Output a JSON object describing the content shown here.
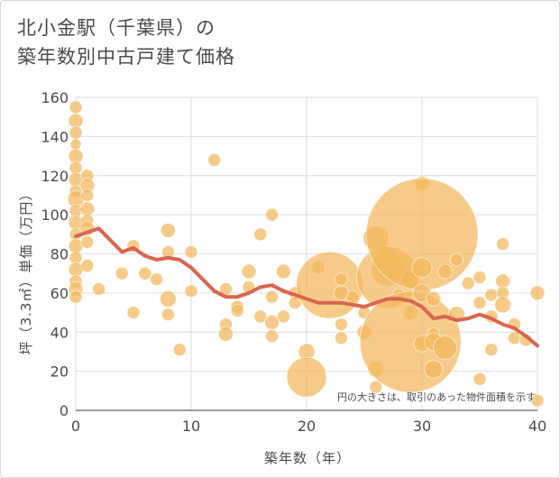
{
  "title_line1": "北小金駅（千葉県）の",
  "title_line2": "築年数別中古戸建て価格",
  "chart_data": {
    "type": "scatter",
    "title": "北小金駅（千葉県）の築年数別中古戸建て価格",
    "xlabel": "築年数（年）",
    "ylabel": "坪（3.3㎡）単価（万円）",
    "xlim": [
      0,
      40
    ],
    "ylim": [
      0,
      160
    ],
    "xticks": [
      0,
      10,
      20,
      30,
      40
    ],
    "yticks": [
      0,
      20,
      40,
      60,
      80,
      100,
      120,
      140,
      160
    ],
    "annotation": "円の大きさは、取引のあった物件面積を示す",
    "colors": {
      "bubble": "#f2b75b",
      "trend": "#d9654e",
      "grid": "#d9dde3"
    },
    "trend_line": {
      "x": [
        0,
        1,
        2,
        3,
        4,
        5,
        6,
        7,
        8,
        9,
        10,
        11,
        12,
        13,
        14,
        15,
        16,
        17,
        18,
        19,
        20,
        21,
        22,
        23,
        24,
        25,
        26,
        27,
        28,
        29,
        30,
        31,
        32,
        33,
        34,
        35,
        36,
        37,
        38,
        39,
        40
      ],
      "y": [
        89,
        91,
        93,
        87,
        81,
        83,
        79,
        77,
        78,
        77,
        73,
        67,
        61,
        58,
        58,
        60,
        63,
        64,
        61,
        59,
        57,
        55,
        55,
        55,
        54,
        53,
        55,
        57,
        57,
        56,
        53,
        47,
        48,
        46,
        47,
        49,
        47,
        44,
        42,
        38,
        33
      ]
    },
    "points": [
      {
        "x": 0,
        "y": 155,
        "r": 7
      },
      {
        "x": 0,
        "y": 148,
        "r": 8
      },
      {
        "x": 0,
        "y": 142,
        "r": 7
      },
      {
        "x": 0,
        "y": 136,
        "r": 6
      },
      {
        "x": 0,
        "y": 130,
        "r": 8
      },
      {
        "x": 0,
        "y": 124,
        "r": 7
      },
      {
        "x": 0,
        "y": 118,
        "r": 8
      },
      {
        "x": 0,
        "y": 112,
        "r": 7
      },
      {
        "x": 0,
        "y": 108,
        "r": 9
      },
      {
        "x": 0,
        "y": 102,
        "r": 7
      },
      {
        "x": 0,
        "y": 96,
        "r": 8
      },
      {
        "x": 0,
        "y": 90,
        "r": 7
      },
      {
        "x": 0,
        "y": 84,
        "r": 8
      },
      {
        "x": 0,
        "y": 78,
        "r": 7
      },
      {
        "x": 0,
        "y": 72,
        "r": 8
      },
      {
        "x": 0,
        "y": 66,
        "r": 7
      },
      {
        "x": 0,
        "y": 62,
        "r": 8
      },
      {
        "x": 0,
        "y": 58,
        "r": 7
      },
      {
        "x": 1,
        "y": 120,
        "r": 7
      },
      {
        "x": 1,
        "y": 115,
        "r": 8
      },
      {
        "x": 1,
        "y": 110,
        "r": 7
      },
      {
        "x": 1,
        "y": 103,
        "r": 8
      },
      {
        "x": 1,
        "y": 97,
        "r": 7
      },
      {
        "x": 1,
        "y": 93,
        "r": 8
      },
      {
        "x": 1,
        "y": 86,
        "r": 7
      },
      {
        "x": 1,
        "y": 74,
        "r": 7
      },
      {
        "x": 2,
        "y": 62,
        "r": 7
      },
      {
        "x": 4,
        "y": 70,
        "r": 7
      },
      {
        "x": 5,
        "y": 84,
        "r": 7
      },
      {
        "x": 5,
        "y": 50,
        "r": 7
      },
      {
        "x": 6,
        "y": 70,
        "r": 7
      },
      {
        "x": 7,
        "y": 67,
        "r": 7
      },
      {
        "x": 8,
        "y": 92,
        "r": 8
      },
      {
        "x": 8,
        "y": 81,
        "r": 7
      },
      {
        "x": 8,
        "y": 57,
        "r": 9
      },
      {
        "x": 8,
        "y": 49,
        "r": 7
      },
      {
        "x": 9,
        "y": 31,
        "r": 7
      },
      {
        "x": 10,
        "y": 81,
        "r": 7
      },
      {
        "x": 10,
        "y": 61,
        "r": 7
      },
      {
        "x": 12,
        "y": 128,
        "r": 7
      },
      {
        "x": 13,
        "y": 62,
        "r": 7
      },
      {
        "x": 13,
        "y": 44,
        "r": 7
      },
      {
        "x": 13,
        "y": 39,
        "r": 8
      },
      {
        "x": 14,
        "y": 53,
        "r": 7
      },
      {
        "x": 14,
        "y": 51,
        "r": 7
      },
      {
        "x": 15,
        "y": 71,
        "r": 8
      },
      {
        "x": 15,
        "y": 63,
        "r": 7
      },
      {
        "x": 16,
        "y": 90,
        "r": 7
      },
      {
        "x": 16,
        "y": 48,
        "r": 7
      },
      {
        "x": 17,
        "y": 100,
        "r": 7
      },
      {
        "x": 17,
        "y": 58,
        "r": 7
      },
      {
        "x": 17,
        "y": 45,
        "r": 8
      },
      {
        "x": 17,
        "y": 38,
        "r": 7
      },
      {
        "x": 18,
        "y": 71,
        "r": 8
      },
      {
        "x": 18,
        "y": 48,
        "r": 7
      },
      {
        "x": 19,
        "y": 60,
        "r": 7
      },
      {
        "x": 19,
        "y": 55,
        "r": 7
      },
      {
        "x": 20,
        "y": 30,
        "r": 9
      },
      {
        "x": 20,
        "y": 17,
        "r": 22
      },
      {
        "x": 21,
        "y": 73,
        "r": 7
      },
      {
        "x": 22,
        "y": 64,
        "r": 37
      },
      {
        "x": 23,
        "y": 67,
        "r": 7
      },
      {
        "x": 23,
        "y": 60,
        "r": 8
      },
      {
        "x": 23,
        "y": 44,
        "r": 7
      },
      {
        "x": 23,
        "y": 37,
        "r": 7
      },
      {
        "x": 24,
        "y": 58,
        "r": 7
      },
      {
        "x": 25,
        "y": 50,
        "r": 7
      },
      {
        "x": 25,
        "y": 40,
        "r": 8
      },
      {
        "x": 26,
        "y": 88,
        "r": 14
      },
      {
        "x": 26,
        "y": 21,
        "r": 9
      },
      {
        "x": 26,
        "y": 12,
        "r": 7
      },
      {
        "x": 27,
        "y": 80,
        "r": 9
      },
      {
        "x": 27,
        "y": 72,
        "r": 18
      },
      {
        "x": 27,
        "y": 68,
        "r": 34
      },
      {
        "x": 28,
        "y": 59,
        "r": 7
      },
      {
        "x": 29,
        "y": 67,
        "r": 10
      },
      {
        "x": 29,
        "y": 50,
        "r": 8
      },
      {
        "x": 29,
        "y": 35,
        "r": 56
      },
      {
        "x": 30,
        "y": 116,
        "r": 8
      },
      {
        "x": 30,
        "y": 90,
        "r": 62
      },
      {
        "x": 30,
        "y": 73,
        "r": 11
      },
      {
        "x": 30,
        "y": 60,
        "r": 10
      },
      {
        "x": 30,
        "y": 34,
        "r": 9
      },
      {
        "x": 31,
        "y": 57,
        "r": 8
      },
      {
        "x": 31,
        "y": 39,
        "r": 7
      },
      {
        "x": 31,
        "y": 35,
        "r": 10
      },
      {
        "x": 31,
        "y": 21,
        "r": 10
      },
      {
        "x": 32,
        "y": 71,
        "r": 8
      },
      {
        "x": 32,
        "y": 32,
        "r": 13
      },
      {
        "x": 33,
        "y": 77,
        "r": 7
      },
      {
        "x": 33,
        "y": 49,
        "r": 9
      },
      {
        "x": 34,
        "y": 65,
        "r": 7
      },
      {
        "x": 35,
        "y": 68,
        "r": 7
      },
      {
        "x": 35,
        "y": 55,
        "r": 7
      },
      {
        "x": 35,
        "y": 16,
        "r": 7
      },
      {
        "x": 36,
        "y": 59,
        "r": 7
      },
      {
        "x": 36,
        "y": 48,
        "r": 7
      },
      {
        "x": 36,
        "y": 31,
        "r": 7
      },
      {
        "x": 37,
        "y": 85,
        "r": 7
      },
      {
        "x": 37,
        "y": 66,
        "r": 8
      },
      {
        "x": 37,
        "y": 60,
        "r": 7
      },
      {
        "x": 37,
        "y": 54,
        "r": 9
      },
      {
        "x": 38,
        "y": 44,
        "r": 7
      },
      {
        "x": 38,
        "y": 37,
        "r": 7
      },
      {
        "x": 39,
        "y": 36,
        "r": 7
      },
      {
        "x": 40,
        "y": 60,
        "r": 8
      },
      {
        "x": 40,
        "y": 5,
        "r": 7
      }
    ]
  }
}
